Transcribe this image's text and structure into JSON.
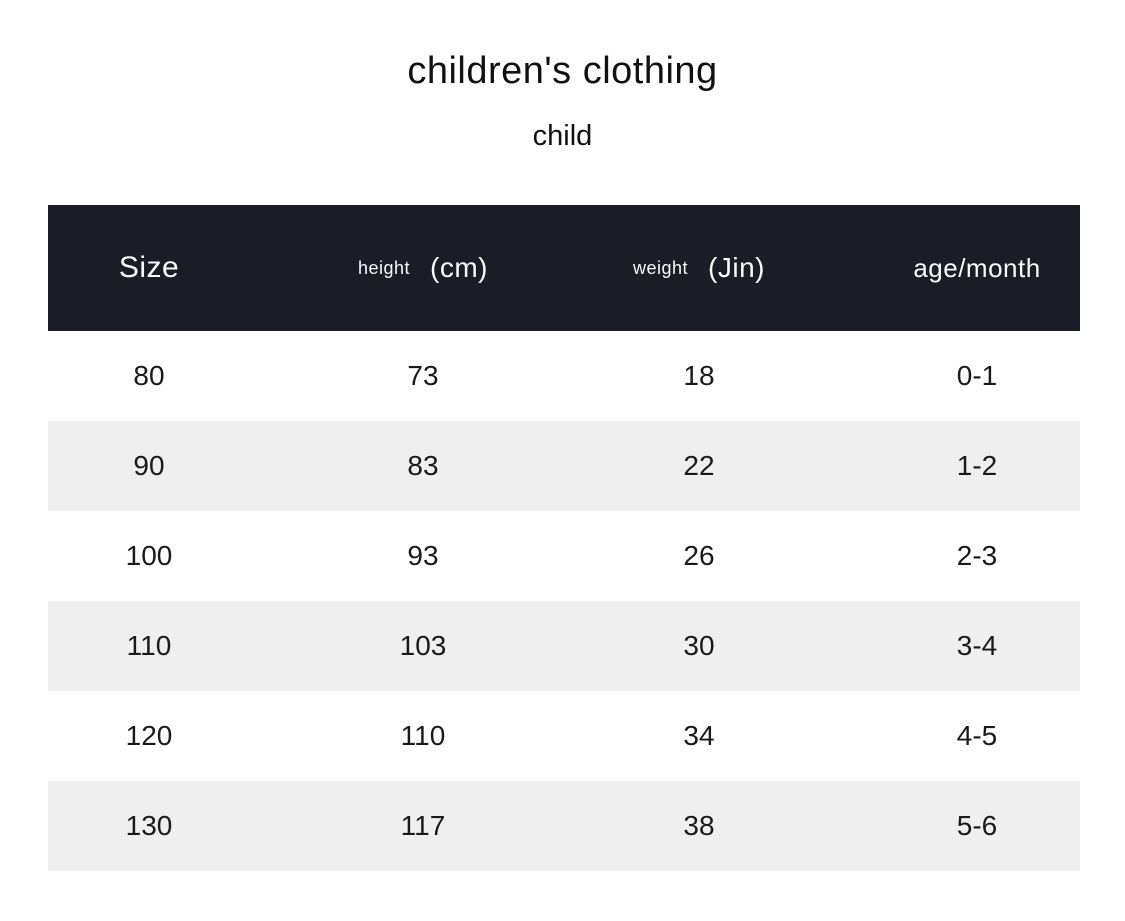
{
  "page": {
    "title": "children's clothing",
    "subtitle": "child"
  },
  "table": {
    "header": {
      "size": "Size",
      "height_label": "height",
      "height_unit": "(cm)",
      "weight_label": "weight",
      "weight_unit": "(Jin)",
      "age": "age/month"
    },
    "column_keys": [
      "size",
      "height",
      "weight",
      "age"
    ],
    "rows": [
      {
        "size": "80",
        "height": "73",
        "weight": "18",
        "age": "0-1"
      },
      {
        "size": "90",
        "height": "83",
        "weight": "22",
        "age": "1-2"
      },
      {
        "size": "100",
        "height": "93",
        "weight": "26",
        "age": "2-3"
      },
      {
        "size": "110",
        "height": "103",
        "weight": "30",
        "age": "3-4"
      },
      {
        "size": "120",
        "height": "110",
        "weight": "34",
        "age": "4-5"
      },
      {
        "size": "130",
        "height": "117",
        "weight": "38",
        "age": "5-6"
      }
    ]
  },
  "colors": {
    "header_bg": "#1a1c26",
    "header_text": "#fafafa",
    "row_alt_bg": "#efefef",
    "body_text": "#1a1a1a",
    "page_bg": "#ffffff"
  }
}
